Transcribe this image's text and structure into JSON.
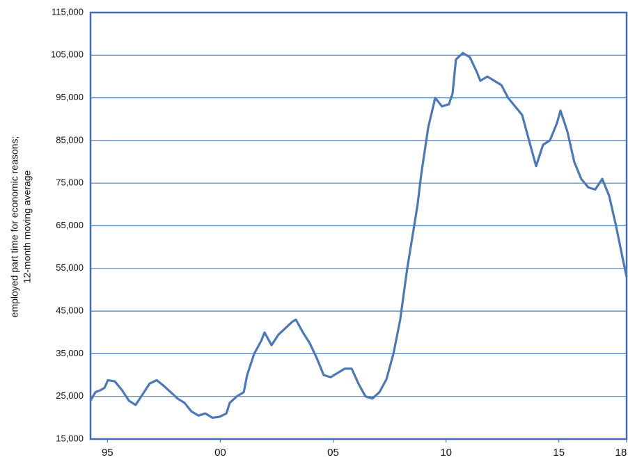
{
  "chart_data": {
    "type": "line",
    "ylabel": [
      "employed part time for economic reasons;",
      "12-month moving average"
    ],
    "x": [
      1994.25,
      1994.47,
      1994.71,
      1994.87,
      1995.02,
      1995.33,
      1995.64,
      1995.95,
      1996.25,
      1996.56,
      1996.87,
      1997.18,
      1997.49,
      1997.8,
      1998.11,
      1998.41,
      1998.72,
      1999.03,
      1999.34,
      1999.65,
      1999.96,
      2000.27,
      2000.42,
      2000.73,
      2001.04,
      2001.19,
      2001.5,
      2001.81,
      2001.96,
      2002.27,
      2002.58,
      2002.89,
      2003.19,
      2003.35,
      2003.66,
      2003.96,
      2004.27,
      2004.58,
      2004.89,
      2005.2,
      2005.51,
      2005.82,
      2006.12,
      2006.43,
      2006.74,
      2007.05,
      2007.36,
      2007.67,
      2007.97,
      2008.28,
      2008.59,
      2008.74,
      2008.9,
      2009.21,
      2009.52,
      2009.82,
      2010.13,
      2010.29,
      2010.44,
      2010.75,
      2011.06,
      2011.37,
      2011.52,
      2011.83,
      2012.14,
      2012.45,
      2012.75,
      2013.06,
      2013.37,
      2013.68,
      2013.99,
      2014.3,
      2014.6,
      2014.91,
      2015.07,
      2015.38,
      2015.68,
      2015.99,
      2016.3,
      2016.61,
      2016.92,
      2017.23,
      2017.53,
      2017.84,
      2018.0
    ],
    "series": [
      {
        "color": "#4a78b8",
        "values": [
          24000,
          26000,
          26500,
          27000,
          28800,
          28500,
          26500,
          24000,
          23000,
          25500,
          28000,
          28800,
          27500,
          26000,
          24500,
          23500,
          21500,
          20500,
          21000,
          20000,
          20200,
          21000,
          23500,
          25000,
          26000,
          30000,
          35000,
          38000,
          40000,
          37000,
          39500,
          41000,
          42500,
          43000,
          40000,
          37500,
          34000,
          30000,
          29500,
          30500,
          31500,
          31500,
          28000,
          25000,
          24500,
          26000,
          29000,
          35000,
          43000,
          55000,
          65000,
          70000,
          77000,
          88000,
          95000,
          93000,
          93500,
          96000,
          104000,
          105500,
          104500,
          101000,
          99000,
          100000,
          99000,
          98000,
          95000,
          93000,
          91000,
          85000,
          79000,
          84000,
          85000,
          89000,
          92000,
          87000,
          80000,
          76000,
          74000,
          73500,
          76000,
          72000,
          65000,
          57000,
          53000
        ]
      }
    ],
    "xlim": [
      1994.25,
      2018
    ],
    "xticks": [
      {
        "value": 1995,
        "label": "95"
      },
      {
        "value": 2000,
        "label": "00"
      },
      {
        "value": 2005,
        "label": "05"
      },
      {
        "value": 2010,
        "label": "10"
      },
      {
        "value": 2015,
        "label": "15"
      },
      {
        "value": 2018,
        "label": "18"
      }
    ],
    "ylim": [
      15000,
      115000
    ],
    "yticks": [
      {
        "value": 15000,
        "label": "15,000"
      },
      {
        "value": 25000,
        "label": "25,000"
      },
      {
        "value": 35000,
        "label": "35,000"
      },
      {
        "value": 45000,
        "label": "45,000"
      },
      {
        "value": 55000,
        "label": "55,000"
      },
      {
        "value": 65000,
        "label": "65,000"
      },
      {
        "value": 75000,
        "label": "75,000"
      },
      {
        "value": 85000,
        "label": "85,000"
      },
      {
        "value": 95000,
        "label": "95,000"
      },
      {
        "value": 105000,
        "label": "105,000"
      },
      {
        "value": 115000,
        "label": "115,000"
      }
    ],
    "grid": true,
    "grid_color": "#4a7cc0"
  }
}
